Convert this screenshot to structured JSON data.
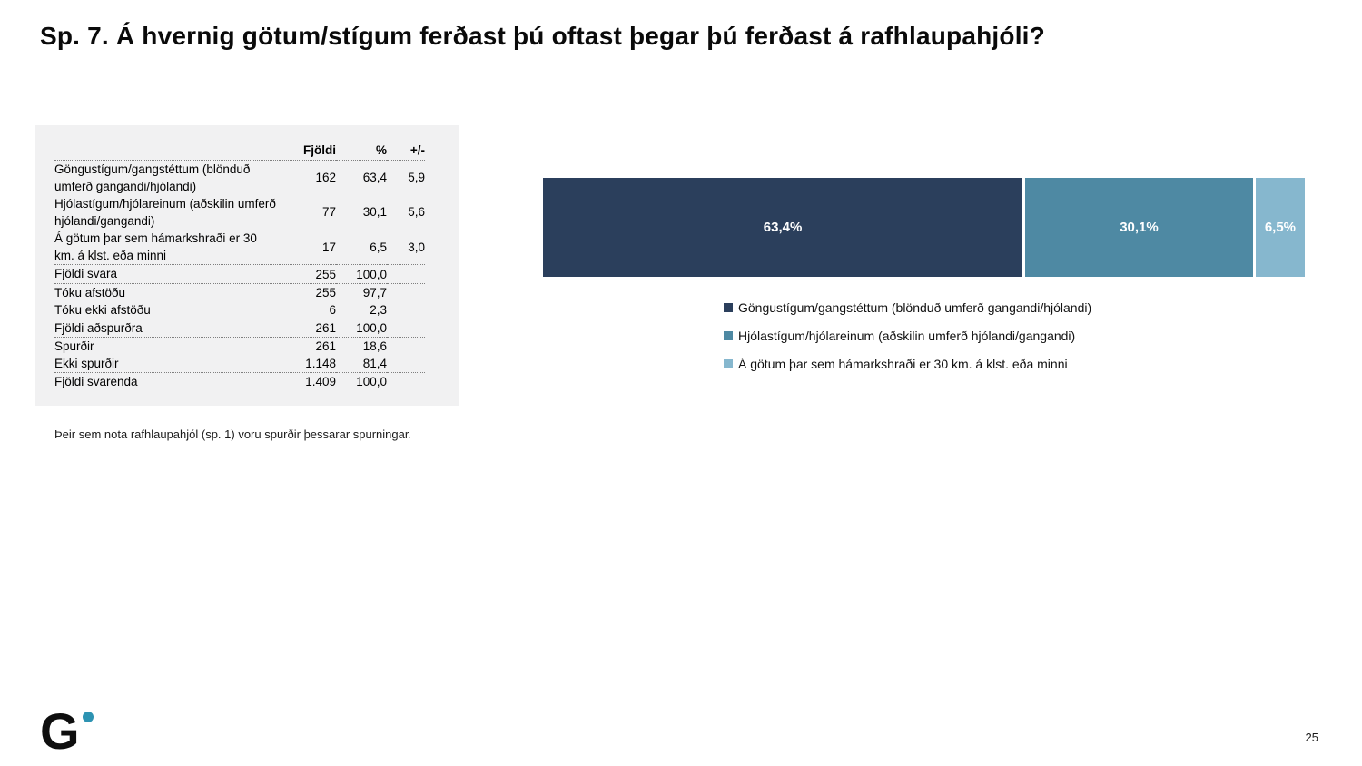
{
  "page": {
    "title": "Sp. 7. Á hvernig götum/stígum ferðast þú oftast þegar þú ferðast á rafhlaupahjóli?",
    "footnote": "Þeir sem nota rafhlaupahjól (sp. 1) voru spurðir þessarar spurningar.",
    "page_number": "25",
    "logo_letter": "G"
  },
  "colors": {
    "navy": "#2B3F5C",
    "teal": "#4E89A3",
    "light_blue": "#86B7CE",
    "panel_gray": "#F1F1F2",
    "logo_dot_teal": "#2D93B2"
  },
  "table": {
    "headers": {
      "fjoldi": "Fjöldi",
      "pct": "%",
      "moe": "+/-"
    },
    "answer_rows": [
      {
        "label": "Göngustígum/gangstéttum (blönduð umferð gangandi/hjólandi)",
        "fjoldi": "162",
        "pct": "63,4",
        "moe": "5,9"
      },
      {
        "label": "Hjólastígum/hjólareinum (aðskilin umferð hjólandi/gangandi)",
        "fjoldi": "77",
        "pct": "30,1",
        "moe": "5,6"
      },
      {
        "label": "Á götum þar sem hámarkshraði er 30 km. á klst. eða minni",
        "fjoldi": "17",
        "pct": "6,5",
        "moe": "3,0"
      }
    ],
    "summary_sections": [
      [
        {
          "label": "Fjöldi svara",
          "fjoldi": "255",
          "pct": "100,0",
          "moe": ""
        }
      ],
      [
        {
          "label": "Tóku afstöðu",
          "fjoldi": "255",
          "pct": "97,7",
          "moe": ""
        },
        {
          "label": "Tóku ekki afstöðu",
          "fjoldi": "6",
          "pct": "2,3",
          "moe": ""
        }
      ],
      [
        {
          "label": "Fjöldi aðspurðra",
          "fjoldi": "261",
          "pct": "100,0",
          "moe": ""
        }
      ],
      [
        {
          "label": "Spurðir",
          "fjoldi": "261",
          "pct": "18,6",
          "moe": ""
        },
        {
          "label": "Ekki spurðir",
          "fjoldi": "1.148",
          "pct": "81,4",
          "moe": ""
        }
      ],
      [
        {
          "label": "Fjöldi svarenda",
          "fjoldi": "1.409",
          "pct": "100,0",
          "moe": ""
        }
      ]
    ]
  },
  "chart_data": {
    "type": "bar",
    "stacked": true,
    "orientation": "horizontal",
    "title": "",
    "xlim": [
      0,
      100
    ],
    "legend_position": "bottom",
    "grid": false,
    "series": [
      {
        "name": "Göngustígum/gangstéttum (blönduð umferð gangandi/hjólandi)",
        "value": 63.4,
        "label": "63,4%",
        "color": "#2B3F5C"
      },
      {
        "name": "Hjólastígum/hjólareinum (aðskilin umferð hjólandi/gangandi)",
        "value": 30.1,
        "label": "30,1%",
        "color": "#4E89A3"
      },
      {
        "name": "Á götum þar sem hámarkshraði er 30 km. á klst. eða minni",
        "value": 6.5,
        "label": "6,5%",
        "color": "#86B7CE"
      }
    ]
  }
}
